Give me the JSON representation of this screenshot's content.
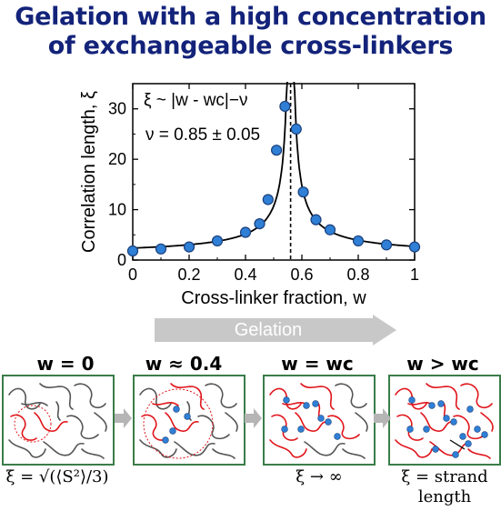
{
  "title": {
    "line1": "Gelation with a high concentration",
    "line2": "of exchangeable cross-linkers"
  },
  "chart_data": {
    "type": "scatter",
    "xlabel": "Cross-linker fraction, w",
    "ylabel": "Correlation length, ξ",
    "xlim": [
      0,
      1
    ],
    "ylim": [
      0,
      35
    ],
    "xticks": [
      "0",
      "0.2",
      "0.4",
      "0.6",
      "0.8",
      "1"
    ],
    "yticks": [
      "0",
      "10",
      "20",
      "30"
    ],
    "grid": false,
    "critical_w": 0.56,
    "annotation_formula": "ξ ~ |w - wc|−ν",
    "annotation_nu": "ν = 0.85 ± 0.05",
    "marker_color": "#2f7fd6",
    "points": [
      {
        "x": 0.0,
        "y": 1.8
      },
      {
        "x": 0.1,
        "y": 2.2
      },
      {
        "x": 0.2,
        "y": 2.6
      },
      {
        "x": 0.3,
        "y": 3.8
      },
      {
        "x": 0.4,
        "y": 5.5
      },
      {
        "x": 0.45,
        "y": 7.2
      },
      {
        "x": 0.48,
        "y": 12.0
      },
      {
        "x": 0.51,
        "y": 21.8
      },
      {
        "x": 0.54,
        "y": 30.5
      },
      {
        "x": 0.58,
        "y": 26.0
      },
      {
        "x": 0.605,
        "y": 13.5
      },
      {
        "x": 0.65,
        "y": 8.0
      },
      {
        "x": 0.7,
        "y": 6.0
      },
      {
        "x": 0.8,
        "y": 3.8
      },
      {
        "x": 0.9,
        "y": 3.0
      },
      {
        "x": 1.0,
        "y": 2.6
      }
    ]
  },
  "process_arrow": {
    "label": "Gelation"
  },
  "panels": [
    {
      "title": "w = 0",
      "caption": "ξ = √(⟨S²⟩/3)"
    },
    {
      "title": "w ≈ 0.4",
      "caption": ""
    },
    {
      "title": "w = wc",
      "caption": "ξ → ∞"
    },
    {
      "title": "w > wc",
      "caption": "ξ = strand length"
    }
  ],
  "colors": {
    "title": "#13237a",
    "panel_border": "#3a7d4a",
    "chain_gray": "#555555",
    "chain_red": "#e0151b",
    "crosslink_blue": "#2f7fd6",
    "arrow_gray": "#c8c8c8"
  }
}
